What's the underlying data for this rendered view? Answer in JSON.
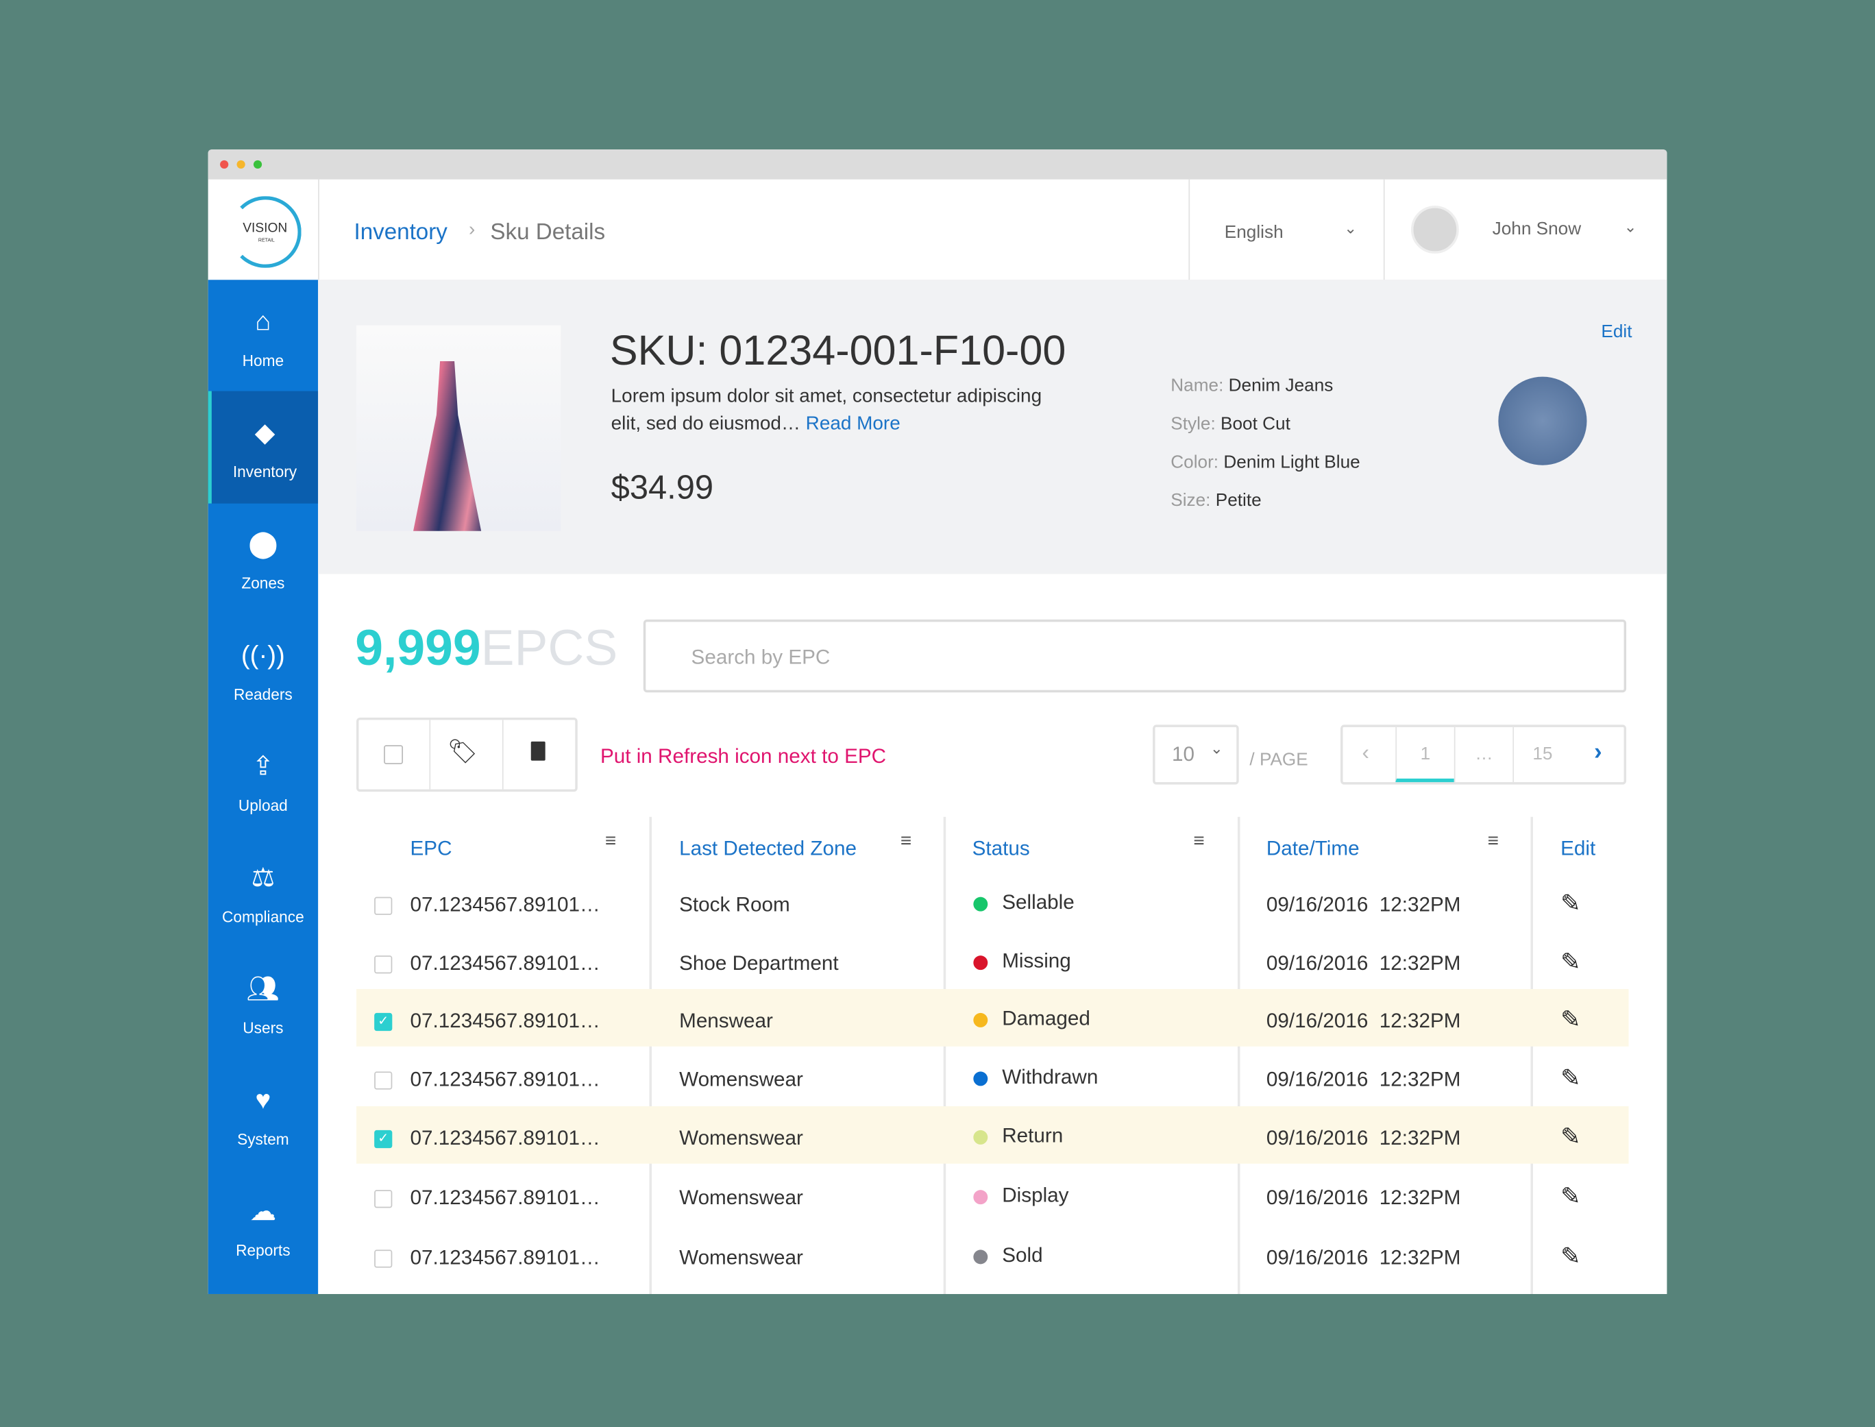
{
  "header": {
    "logo": "VISION",
    "logo_sub": "RETAIL",
    "breadcrumb": [
      "Inventory",
      "Sku Details"
    ],
    "language": "English",
    "user": "John Snow"
  },
  "nav": [
    {
      "label": "Home",
      "icon": "home",
      "active": false
    },
    {
      "label": "Inventory",
      "icon": "tag",
      "active": true
    },
    {
      "label": "Zones",
      "icon": "pin",
      "active": false
    },
    {
      "label": "Readers",
      "icon": "signal",
      "active": false
    },
    {
      "label": "Upload",
      "icon": "upload",
      "active": false
    },
    {
      "label": "Compliance",
      "icon": "scale",
      "active": false
    },
    {
      "label": "Users",
      "icon": "users",
      "active": false
    },
    {
      "label": "System",
      "icon": "heart",
      "active": false
    },
    {
      "label": "Reports",
      "icon": "cloud",
      "active": false
    }
  ],
  "product": {
    "edit": "Edit",
    "sku": "SKU: 01234-001-F10-00",
    "description": "Lorem ipsum dolor sit amet, consectetur adipiscing elit, sed do eiusmod…",
    "read_more": "Read More",
    "price": "$34.99",
    "attributes": [
      {
        "label": "Name:",
        "value": "Denim Jeans"
      },
      {
        "label": "Style:",
        "value": "Boot Cut"
      },
      {
        "label": "Color:",
        "value": "Denim Light Blue"
      },
      {
        "label": "Size:",
        "value": "Petite"
      }
    ]
  },
  "epc": {
    "count": "9,999",
    "unit": "EPCS",
    "search_placeholder": "Search by EPC",
    "note": "Put in Refresh icon next to EPC",
    "per_page": "10",
    "per_page_label": "/ PAGE",
    "pages": [
      "1",
      "…",
      "15"
    ]
  },
  "table": {
    "columns": [
      "EPC",
      "Last Detected Zone",
      "Status",
      "Date/Time",
      "Edit"
    ],
    "rows": [
      {
        "checked": false,
        "epc": "07.1234567.89101…",
        "zone": "Stock Room",
        "status": "Sellable",
        "status_color": "#17c66b",
        "date": "09/16/2016  12:32PM"
      },
      {
        "checked": false,
        "epc": "07.1234567.89101…",
        "zone": "Shoe Department",
        "status": "Missing",
        "status_color": "#d9142b",
        "date": "09/16/2016  12:32PM"
      },
      {
        "checked": true,
        "epc": "07.1234567.89101…",
        "zone": "Menswear",
        "status": "Damaged",
        "status_color": "#f6b81e",
        "date": "09/16/2016  12:32PM"
      },
      {
        "checked": false,
        "epc": "07.1234567.89101…",
        "zone": "Womenswear",
        "status": "Withdrawn",
        "status_color": "#0a6fd1",
        "date": "09/16/2016  12:32PM"
      },
      {
        "checked": true,
        "epc": "07.1234567.89101…",
        "zone": "Womenswear",
        "status": "Return",
        "status_color": "#d7e58c",
        "date": "09/16/2016  12:32PM"
      },
      {
        "checked": false,
        "epc": "07.1234567.89101…",
        "zone": "Womenswear",
        "status": "Display",
        "status_color": "#f3a3c8",
        "date": "09/16/2016  12:32PM"
      },
      {
        "checked": false,
        "epc": "07.1234567.89101…",
        "zone": "Womenswear",
        "status": "Sold",
        "status_color": "#85868d",
        "date": "09/16/2016  12:32PM"
      }
    ]
  }
}
